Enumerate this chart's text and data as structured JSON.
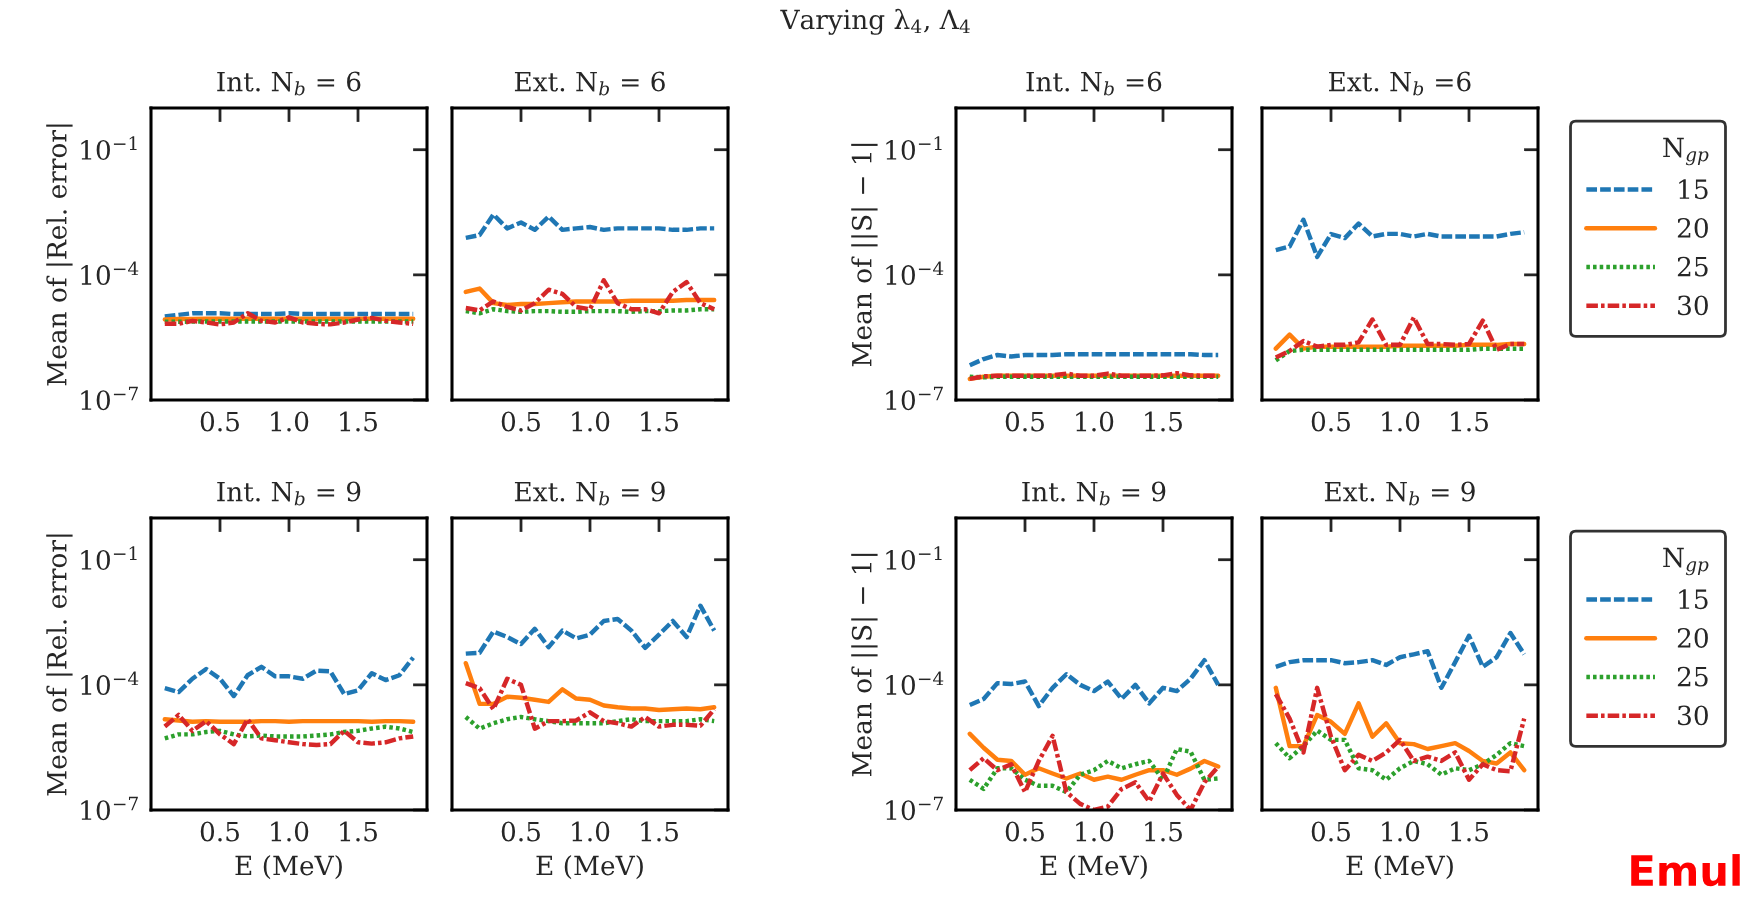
{
  "chart_data": [
    {
      "type": "line",
      "title": "Int. N$_{b}$ = 6",
      "ylabel": "Mean of |Rel. error|",
      "annotations": [
        "Varying λ$_{4}$, Λ$_{4}$"
      ],
      "log": "y",
      "xlim": [
        0,
        2
      ],
      "ylim": [
        1e-07,
        1
      ],
      "xticks": [
        {
          "value": 0.5,
          "label": "0.5"
        },
        {
          "value": 1.0,
          "label": "1.0"
        },
        {
          "value": 1.5,
          "label": "1.5"
        }
      ],
      "yticks": [
        {
          "value": 1e-07,
          "label": "10$^{−7}$"
        },
        {
          "value": 0.0001,
          "label": "10$^{−4}$"
        },
        {
          "value": 0.1,
          "label": "10$^{−1}$"
        }
      ],
      "x": [
        0.1,
        0.2,
        0.3,
        0.4,
        0.5,
        0.6,
        0.7,
        0.8,
        0.9,
        1.0,
        1.1,
        1.2,
        1.3,
        1.4,
        1.5,
        1.6,
        1.7,
        1.8,
        1.9
      ],
      "series": [
        {
          "color": "#1f77b4",
          "line_style": "dashed",
          "values": [
            1e-05,
            1.1e-05,
            1.2e-05,
            1.2e-05,
            1.2e-05,
            1.15e-05,
            1.15e-05,
            1.15e-05,
            1.15e-05,
            1.2e-05,
            1.15e-05,
            1.15e-05,
            1.15e-05,
            1.15e-05,
            1.15e-05,
            1.15e-05,
            1.15e-05,
            1.15e-05,
            1.15e-05
          ]
        },
        {
          "color": "#ff7f0e",
          "line_style": "solid",
          "values": [
            8.5e-06,
            8.7e-06,
            8.8e-06,
            8.9e-06,
            8.9e-06,
            8.9e-06,
            8.9e-06,
            8.9e-06,
            8.9e-06,
            8.9e-06,
            8.9e-06,
            8.9e-06,
            8.9e-06,
            8.9e-06,
            8.9e-06,
            8.9e-06,
            8.9e-06,
            8.9e-06,
            8.9e-06
          ]
        },
        {
          "color": "#2ca02c",
          "line_style": "dotted",
          "values": [
            7.5e-06,
            7.5e-06,
            7.6e-06,
            7.6e-06,
            7.6e-06,
            7.6e-06,
            7.6e-06,
            7.6e-06,
            7.6e-06,
            7.6e-06,
            7.6e-06,
            7.6e-06,
            7.6e-06,
            7.6e-06,
            7.6e-06,
            7.6e-06,
            7.6e-06,
            7.6e-06,
            7.6e-06
          ]
        },
        {
          "color": "#d62728",
          "line_style": "dashdot",
          "values": [
            6.7e-06,
            6.7e-06,
            7.9e-06,
            7.2e-06,
            6.5e-06,
            7.2e-06,
            1.2e-05,
            7.9e-06,
            7.2e-06,
            9.6e-06,
            7.2e-06,
            6.7e-06,
            6.5e-06,
            7.2e-06,
            8.5e-06,
            9.3e-06,
            7.9e-06,
            7.2e-06,
            6.7e-06
          ]
        }
      ]
    },
    {
      "type": "line",
      "title": "Ext. N$_{b}$ = 6",
      "log": "y",
      "tick_labels": "x",
      "xlim": [
        0,
        2
      ],
      "ylim": [
        1e-07,
        1
      ],
      "xticks": [
        {
          "value": 0.5,
          "label": "0.5"
        },
        {
          "value": 1.0,
          "label": "1.0"
        },
        {
          "value": 1.5,
          "label": "1.5"
        }
      ],
      "yticks": [
        {
          "value": 1e-07,
          "label": null
        },
        {
          "value": 0.0001,
          "label": null
        },
        {
          "value": 0.1,
          "label": null
        }
      ],
      "x": [
        0.1,
        0.2,
        0.3,
        0.4,
        0.5,
        0.6,
        0.7,
        0.8,
        0.9,
        1.0,
        1.1,
        1.2,
        1.3,
        1.4,
        1.5,
        1.6,
        1.7,
        1.8,
        1.9
      ],
      "series": [
        {
          "color": "#1f77b4",
          "line_style": "dashed",
          "values": [
            0.00077,
            0.0009,
            0.0028,
            0.0013,
            0.0018,
            0.0012,
            0.0025,
            0.0012,
            0.0013,
            0.0014,
            0.0012,
            0.0013,
            0.0013,
            0.0013,
            0.0013,
            0.0012,
            0.0012,
            0.0013,
            0.0013
          ]
        },
        {
          "color": "#ff7f0e",
          "line_style": "solid",
          "values": [
            3.9e-05,
            4.7e-05,
            2.1e-05,
            1.9e-05,
            2e-05,
            2e-05,
            2.1e-05,
            2.2e-05,
            2.3e-05,
            2.3e-05,
            2.3e-05,
            2.3e-05,
            2.4e-05,
            2.4e-05,
            2.4e-05,
            2.4e-05,
            2.5e-05,
            2.5e-05,
            2.5e-05
          ]
        },
        {
          "color": "#2ca02c",
          "line_style": "dotted",
          "values": [
            1.35e-05,
            1.2e-05,
            1.5e-05,
            1.35e-05,
            1.3e-05,
            1.35e-05,
            1.35e-05,
            1.3e-05,
            1.3e-05,
            1.35e-05,
            1.35e-05,
            1.35e-05,
            1.3e-05,
            1.35e-05,
            1.35e-05,
            1.4e-05,
            1.4e-05,
            1.5e-05,
            1.5e-05
          ]
        },
        {
          "color": "#d62728",
          "line_style": "dashdot",
          "values": [
            1.6e-05,
            1.4e-05,
            2.3e-05,
            1.7e-05,
            1.4e-05,
            2.1e-05,
            4.4e-05,
            3.5e-05,
            1.7e-05,
            1.5e-05,
            7.4e-05,
            2.1e-05,
            1.5e-05,
            1.5e-05,
            1.2e-05,
            3.9e-05,
            6.7e-05,
            2.1e-05,
            1.5e-05
          ]
        }
      ]
    },
    {
      "type": "line",
      "title": "Int. N$_{b}$ =6",
      "ylabel": "Mean of ||S| − 1|",
      "log": "y",
      "xlim": [
        0,
        2
      ],
      "ylim": [
        1e-07,
        1
      ],
      "xticks": [
        {
          "value": 0.5,
          "label": "0.5"
        },
        {
          "value": 1.0,
          "label": "1.0"
        },
        {
          "value": 1.5,
          "label": "1.5"
        }
      ],
      "yticks": [
        {
          "value": 1e-07,
          "label": "10$^{−7}$"
        },
        {
          "value": 0.0001,
          "label": "10$^{−4}$"
        },
        {
          "value": 0.1,
          "label": "10$^{−1}$"
        }
      ],
      "x": [
        0.1,
        0.2,
        0.3,
        0.4,
        0.5,
        0.6,
        0.7,
        0.8,
        0.9,
        1.0,
        1.1,
        1.2,
        1.3,
        1.4,
        1.5,
        1.6,
        1.7,
        1.8,
        1.9
      ],
      "series": [
        {
          "color": "#1f77b4",
          "line_style": "dashed",
          "values": [
            6.8e-07,
            9.6e-07,
            1.2e-06,
            1.1e-06,
            1.2e-06,
            1.2e-06,
            1.2e-06,
            1.25e-06,
            1.25e-06,
            1.25e-06,
            1.25e-06,
            1.25e-06,
            1.25e-06,
            1.25e-06,
            1.25e-06,
            1.25e-06,
            1.25e-06,
            1.2e-06,
            1.2e-06
          ]
        },
        {
          "color": "#ff7f0e",
          "line_style": "solid",
          "values": [
            3.2e-07,
            3.6e-07,
            3.8e-07,
            3.8e-07,
            3.8e-07,
            3.8e-07,
            3.8e-07,
            3.8e-07,
            3.8e-07,
            3.8e-07,
            3.8e-07,
            3.8e-07,
            3.8e-07,
            3.8e-07,
            3.8e-07,
            3.8e-07,
            3.8e-07,
            3.8e-07,
            3.8e-07
          ]
        },
        {
          "color": "#2ca02c",
          "line_style": "dotted",
          "values": [
            3.6e-07,
            3.5e-07,
            3.6e-07,
            3.6e-07,
            3.6e-07,
            3.6e-07,
            3.6e-07,
            3.6e-07,
            3.6e-07,
            3.6e-07,
            3.6e-07,
            3.6e-07,
            3.6e-07,
            3.6e-07,
            3.6e-07,
            3.6e-07,
            3.6e-07,
            3.6e-07,
            3.6e-07
          ]
        },
        {
          "color": "#d62728",
          "line_style": "dashdot",
          "values": [
            3.2e-07,
            3.7e-07,
            3.8e-07,
            3.8e-07,
            3.8e-07,
            3.8e-07,
            3.9e-07,
            4.3e-07,
            3.8e-07,
            3.8e-07,
            4.3e-07,
            3.8e-07,
            3.8e-07,
            3.8e-07,
            3.9e-07,
            4.4e-07,
            3.9e-07,
            3.8e-07,
            3.8e-07
          ]
        }
      ]
    },
    {
      "type": "line",
      "title": "Ext. N$_{b}$ =6",
      "log": "y",
      "tick_labels": "x",
      "legend": "right",
      "legend_title": "N$_{gp}$",
      "xlim": [
        0,
        2
      ],
      "ylim": [
        1e-07,
        1
      ],
      "xticks": [
        {
          "value": 0.5,
          "label": "0.5"
        },
        {
          "value": 1.0,
          "label": "1.0"
        },
        {
          "value": 1.5,
          "label": "1.5"
        }
      ],
      "yticks": [
        {
          "value": 1e-07,
          "label": null
        },
        {
          "value": 0.0001,
          "label": null
        },
        {
          "value": 0.1,
          "label": null
        }
      ],
      "x": [
        0.1,
        0.2,
        0.3,
        0.4,
        0.5,
        0.6,
        0.7,
        0.8,
        0.9,
        1.0,
        1.1,
        1.2,
        1.3,
        1.4,
        1.5,
        1.6,
        1.7,
        1.8,
        1.9
      ],
      "series": [
        {
          "name": "15",
          "color": "#1f77b4",
          "line_style": "dashed",
          "values": [
            0.00039,
            0.00048,
            0.0021,
            0.00027,
            0.00095,
            0.00076,
            0.0017,
            0.00083,
            0.00096,
            0.00096,
            0.00083,
            0.00096,
            0.00083,
            0.00083,
            0.00083,
            0.00083,
            0.00083,
            0.00096,
            0.00105
          ]
        },
        {
          "name": "20",
          "color": "#ff7f0e",
          "line_style": "solid",
          "values": [
            1.7e-06,
            3.7e-06,
            1.7e-06,
            1.9e-06,
            1.9e-06,
            1.9e-06,
            1.9e-06,
            1.9e-06,
            1.9e-06,
            2e-06,
            2e-06,
            2e-06,
            2e-06,
            2e-06,
            2.1e-06,
            2.1e-06,
            2.1e-06,
            2.2e-06,
            2.2e-06
          ]
        },
        {
          "name": "25",
          "color": "#2ca02c",
          "line_style": "dotted",
          "values": [
            8.9e-07,
            1.5e-06,
            1.6e-06,
            1.6e-06,
            1.6e-06,
            1.6e-06,
            1.6e-06,
            1.6e-06,
            1.6e-06,
            1.6e-06,
            1.6e-06,
            1.6e-06,
            1.6e-06,
            1.6e-06,
            1.6e-06,
            1.7e-06,
            1.7e-06,
            1.7e-06,
            1.7e-06
          ]
        },
        {
          "name": "30",
          "color": "#d62728",
          "line_style": "dashdot",
          "values": [
            1.05e-06,
            1.5e-06,
            2.6e-06,
            1.9e-06,
            2.1e-06,
            2.1e-06,
            2.4e-06,
            8.5e-06,
            2.1e-06,
            2.1e-06,
            9.5e-06,
            2.2e-06,
            2.2e-06,
            2.1e-06,
            2.2e-06,
            8e-06,
            1.6e-06,
            2.2e-06,
            2.2e-06
          ]
        }
      ]
    },
    {
      "type": "line",
      "title": "Int. N$_{b}$ = 9",
      "xlabel": "E (MeV)",
      "ylabel": "Mean of |Rel. error|",
      "log": "y",
      "xlim": [
        0,
        2
      ],
      "ylim": [
        1e-07,
        1
      ],
      "xticks": [
        {
          "value": 0.5,
          "label": "0.5"
        },
        {
          "value": 1.0,
          "label": "1.0"
        },
        {
          "value": 1.5,
          "label": "1.5"
        }
      ],
      "yticks": [
        {
          "value": 1e-07,
          "label": "10$^{−7}$"
        },
        {
          "value": 0.0001,
          "label": "10$^{−4}$"
        },
        {
          "value": 0.1,
          "label": "10$^{−1}$"
        }
      ],
      "x": [
        0.1,
        0.2,
        0.3,
        0.4,
        0.5,
        0.6,
        0.7,
        0.8,
        0.9,
        1.0,
        1.1,
        1.2,
        1.3,
        1.4,
        1.5,
        1.6,
        1.7,
        1.8,
        1.9
      ],
      "series": [
        {
          "color": "#1f77b4",
          "line_style": "dashed",
          "values": [
            8.3e-05,
            6.7e-05,
            0.00014,
            0.00024,
            0.00014,
            5.4e-05,
            0.00017,
            0.00027,
            0.00016,
            0.00016,
            0.00014,
            0.00022,
            0.00021,
            6e-05,
            7.4e-05,
            0.00019,
            0.00013,
            0.00017,
            0.00045
          ]
        },
        {
          "color": "#ff7f0e",
          "line_style": "solid",
          "values": [
            1.5e-05,
            1.4e-05,
            1.3e-05,
            1.35e-05,
            1.3e-05,
            1.3e-05,
            1.3e-05,
            1.35e-05,
            1.35e-05,
            1.3e-05,
            1.35e-05,
            1.35e-05,
            1.35e-05,
            1.35e-05,
            1.35e-05,
            1.3e-05,
            1.35e-05,
            1.35e-05,
            1.3e-05
          ]
        },
        {
          "color": "#2ca02c",
          "line_style": "dotted",
          "values": [
            5.2e-06,
            6.5e-06,
            6.5e-06,
            7.4e-06,
            7.9e-06,
            6.5e-06,
            5.8e-06,
            6.1e-06,
            5.8e-06,
            5.8e-06,
            5.8e-06,
            6.1e-06,
            6.5e-06,
            7.4e-06,
            7.9e-06,
            9e-06,
            9.9e-06,
            9e-06,
            7.4e-06
          ]
        },
        {
          "color": "#d62728",
          "line_style": "dashdot",
          "values": [
            1e-05,
            1.9e-05,
            7.9e-06,
            1.35e-05,
            6.5e-06,
            3.8e-06,
            1.5e-05,
            5.2e-06,
            4.7e-06,
            4.2e-06,
            3.8e-06,
            3.6e-06,
            3.8e-06,
            7.9e-06,
            4.2e-06,
            3.9e-06,
            4.2e-06,
            5.2e-06,
            5.8e-06
          ]
        }
      ]
    },
    {
      "type": "line",
      "title": "Ext. N$_{b}$ = 9",
      "xlabel": "E (MeV)",
      "log": "y",
      "tick_labels": "x",
      "xlim": [
        0,
        2
      ],
      "ylim": [
        1e-07,
        1
      ],
      "xticks": [
        {
          "value": 0.5,
          "label": "0.5"
        },
        {
          "value": 1.0,
          "label": "1.0"
        },
        {
          "value": 1.5,
          "label": "1.5"
        }
      ],
      "yticks": [
        {
          "value": 1e-07,
          "label": null
        },
        {
          "value": 0.0001,
          "label": null
        },
        {
          "value": 0.1,
          "label": null
        }
      ],
      "x": [
        0.1,
        0.2,
        0.3,
        0.4,
        0.5,
        0.6,
        0.7,
        0.8,
        0.9,
        1.0,
        1.1,
        1.2,
        1.3,
        1.4,
        1.5,
        1.6,
        1.7,
        1.8,
        1.9
      ],
      "series": [
        {
          "color": "#1f77b4",
          "line_style": "dashed",
          "values": [
            0.00056,
            0.00059,
            0.0019,
            0.0014,
            0.00095,
            0.0022,
            0.0008,
            0.002,
            0.0013,
            0.0016,
            0.0034,
            0.0038,
            0.002,
            0.00077,
            0.0016,
            0.0034,
            0.0014,
            0.0079,
            0.002
          ]
        },
        {
          "color": "#ff7f0e",
          "line_style": "solid",
          "values": [
            0.00033,
            3.5e-05,
            3.5e-05,
            5.2e-05,
            4.9e-05,
            4.4e-05,
            3.9e-05,
            7.8e-05,
            4.7e-05,
            4.4e-05,
            3.2e-05,
            2.9e-05,
            2.7e-05,
            2.7e-05,
            2.5e-05,
            2.6e-05,
            2.7e-05,
            2.6e-05,
            2.9e-05
          ]
        },
        {
          "color": "#2ca02c",
          "line_style": "dotted",
          "values": [
            1.7e-05,
            8.9e-06,
            1.2e-05,
            1.5e-05,
            1.7e-05,
            1.5e-05,
            1.35e-05,
            1.2e-05,
            1.2e-05,
            1.2e-05,
            1.2e-05,
            1.35e-05,
            1.5e-05,
            1.35e-05,
            1.35e-05,
            1.35e-05,
            1.35e-05,
            1.5e-05,
            1.35e-05
          ]
        },
        {
          "color": "#d62728",
          "line_style": "dashdot",
          "values": [
            0.00011,
            8.3e-05,
            2.6e-05,
            0.00014,
            0.0001,
            8.9e-06,
            1.35e-05,
            1.35e-05,
            1.4e-05,
            2.2e-05,
            1.35e-05,
            1.2e-05,
            1e-05,
            1.7e-05,
            1e-05,
            1.1e-05,
            1.1e-05,
            1.05e-05,
            2.6e-05
          ]
        }
      ]
    },
    {
      "type": "line",
      "title": "Int. N$_{b}$ = 9",
      "xlabel": "E (MeV)",
      "ylabel": "Mean of ||S| − 1|",
      "log": "y",
      "xlim": [
        0,
        2
      ],
      "ylim": [
        1e-07,
        1
      ],
      "xticks": [
        {
          "value": 0.5,
          "label": "0.5"
        },
        {
          "value": 1.0,
          "label": "1.0"
        },
        {
          "value": 1.5,
          "label": "1.5"
        }
      ],
      "yticks": [
        {
          "value": 1e-07,
          "label": "10$^{−7}$"
        },
        {
          "value": 0.0001,
          "label": "10$^{−4}$"
        },
        {
          "value": 0.1,
          "label": "10$^{−1}$"
        }
      ],
      "x": [
        0.1,
        0.2,
        0.3,
        0.4,
        0.5,
        0.6,
        0.7,
        0.8,
        0.9,
        1.0,
        1.1,
        1.2,
        1.3,
        1.4,
        1.5,
        1.6,
        1.7,
        1.8,
        1.9
      ],
      "series": [
        {
          "color": "#1f77b4",
          "line_style": "dashed",
          "values": [
            3.3e-05,
            4.6e-05,
            0.00011,
            0.000105,
            0.00012,
            3.1e-05,
            8.5e-05,
            0.00018,
            0.0001,
            7.1e-05,
            0.00012,
            4.6e-05,
            0.0001,
            3.6e-05,
            8.5e-05,
            7.1e-05,
            0.00014,
            0.00039,
            0.0001
          ]
        },
        {
          "color": "#ff7f0e",
          "line_style": "solid",
          "values": [
            6.7e-06,
            3.1e-06,
            1.6e-06,
            1.5e-06,
            7e-07,
            1e-06,
            7.5e-07,
            5.7e-07,
            7.5e-07,
            5.3e-07,
            6.3e-07,
            5.3e-07,
            7e-07,
            9e-07,
            9e-07,
            7e-07,
            9.8e-07,
            1.5e-06,
            1.1e-06
          ]
        },
        {
          "color": "#2ca02c",
          "line_style": "dotted",
          "values": [
            5.3e-07,
            3.2e-07,
            1e-06,
            1e-06,
            5.3e-07,
            3.8e-07,
            3.8e-07,
            2.7e-07,
            7e-07,
            9e-07,
            1.5e-06,
            1e-06,
            1.25e-06,
            1.5e-06,
            5.3e-07,
            2.9e-06,
            2.5e-06,
            5.3e-07,
            5.7e-07
          ]
        },
        {
          "color": "#d62728",
          "line_style": "dashdot",
          "values": [
            9e-07,
            1.75e-06,
            9e-07,
            1.25e-06,
            2.7e-07,
            1.5e-06,
            6e-06,
            2.7e-07,
            1.4e-07,
            1e-07,
            1.2e-07,
            3.2e-07,
            4.6e-07,
            1.6e-07,
            7.5e-07,
            2.3e-07,
            1e-07,
            4.6e-07,
            1.1e-06
          ]
        }
      ]
    },
    {
      "type": "line",
      "title": "Ext. N$_{b}$ = 9",
      "xlabel": "E (MeV)",
      "log": "y",
      "tick_labels": "x",
      "legend": "right",
      "legend_title": "N$_{gp}$",
      "annotations": [
        "Emul"
      ],
      "xlim": [
        0,
        2
      ],
      "ylim": [
        1e-07,
        1
      ],
      "xticks": [
        {
          "value": 0.5,
          "label": "0.5"
        },
        {
          "value": 1.0,
          "label": "1.0"
        },
        {
          "value": 1.5,
          "label": "1.5"
        }
      ],
      "yticks": [
        {
          "value": 1e-07,
          "label": null
        },
        {
          "value": 0.0001,
          "label": null
        },
        {
          "value": 0.1,
          "label": null
        }
      ],
      "x": [
        0.1,
        0.2,
        0.3,
        0.4,
        0.5,
        0.6,
        0.7,
        0.8,
        0.9,
        1.0,
        1.1,
        1.2,
        1.3,
        1.4,
        1.5,
        1.6,
        1.7,
        1.8,
        1.9
      ],
      "series": [
        {
          "name": "15",
          "color": "#1f77b4",
          "line_style": "dashed",
          "values": [
            0.00027,
            0.00035,
            0.00039,
            0.00039,
            0.00039,
            0.00033,
            0.00035,
            0.00039,
            0.0003,
            0.00046,
            0.00054,
            0.00064,
            8.5e-05,
            0.00035,
            0.0015,
            0.00027,
            0.00046,
            0.00175,
            0.00054
          ]
        },
        {
          "name": "20",
          "color": "#ff7f0e",
          "line_style": "solid",
          "values": [
            8.5e-05,
            3.4e-06,
            3.4e-06,
            1.9e-05,
            1.3e-05,
            6.7e-06,
            3.6e-05,
            5.7e-06,
            1.2e-05,
            4e-06,
            3.8e-06,
            2.9e-06,
            3.4e-06,
            4e-06,
            2.6e-06,
            1.5e-06,
            1.3e-06,
            2.4e-06,
            9e-07
          ]
        },
        {
          "name": "25",
          "color": "#2ca02c",
          "line_style": "dotted",
          "values": [
            4e-06,
            1.75e-06,
            3.4e-06,
            8e-06,
            4.8e-06,
            4.8e-06,
            1e-06,
            9e-07,
            5.3e-07,
            1e-06,
            1.5e-06,
            1.25e-06,
            7e-07,
            1e-06,
            9e-07,
            1.25e-06,
            2.1e-06,
            4e-06,
            3.4e-06
          ]
        },
        {
          "name": "30",
          "color": "#d62728",
          "line_style": "dashdot",
          "values": [
            6e-05,
            1.55e-05,
            2.4e-06,
            8.5e-05,
            5.7e-06,
            9e-07,
            2.1e-06,
            1.5e-06,
            2.4e-06,
            4.8e-06,
            1.5e-06,
            1.9e-06,
            1.5e-06,
            2.4e-06,
            5.3e-07,
            1.25e-06,
            9e-07,
            8.5e-07,
            1.55e-05
          ]
        }
      ]
    }
  ]
}
